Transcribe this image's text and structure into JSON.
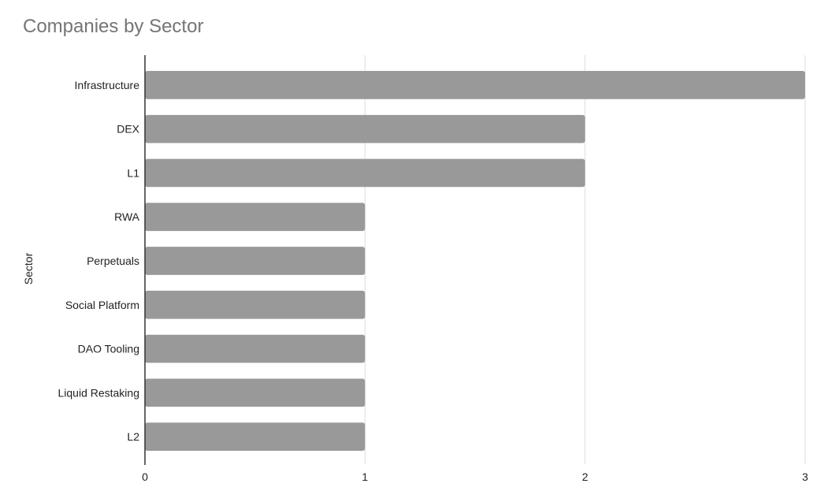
{
  "chart_data": {
    "type": "bar",
    "orientation": "horizontal",
    "title": "Companies by Sector",
    "xlabel": "",
    "ylabel": "Sector",
    "categories": [
      "Infrastructure",
      "DEX",
      "L1",
      "RWA",
      "Perpetuals",
      "Social Platform",
      "DAO Tooling",
      "Liquid Restaking",
      "L2"
    ],
    "values": [
      3,
      2,
      2,
      1,
      1,
      1,
      1,
      1,
      1
    ],
    "xlim": [
      0,
      3
    ],
    "xticks": [
      "0",
      "1",
      "2",
      "3"
    ],
    "grid": true,
    "legend": "none",
    "colors": {
      "bar": "#999999",
      "grid": "#dddddd",
      "axis": "#333333"
    }
  }
}
